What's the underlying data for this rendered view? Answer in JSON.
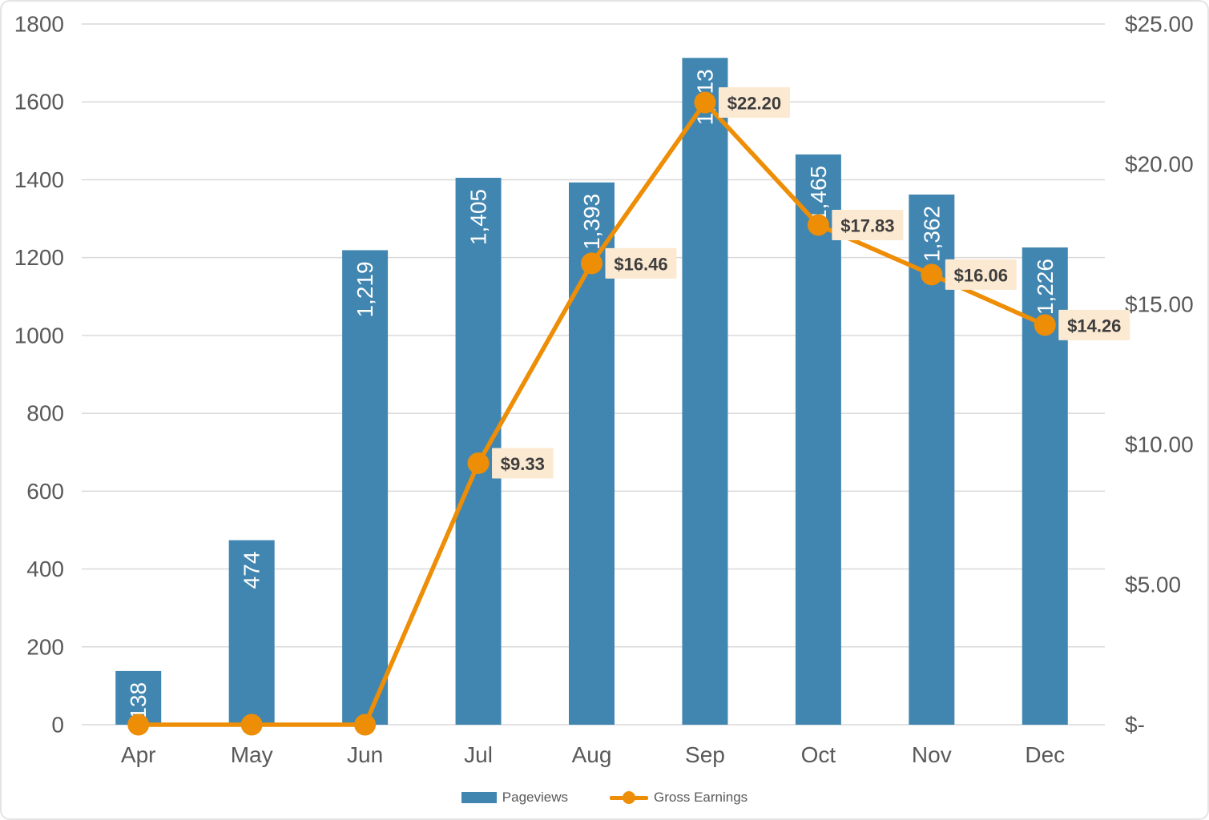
{
  "legend": {
    "pageviews_label": "Pageviews",
    "gross_earnings_label": "Gross Earnings"
  },
  "colors": {
    "bar": "#4186B1",
    "line": "#EE8D06",
    "line_label_bg": "#FCE9D1",
    "line_label_text": "#3E3E3E",
    "axis_text": "#595959",
    "gridline": "#D9D9D9",
    "bar_label_text": "#FFFFFF"
  },
  "chart_data": {
    "type": "bar",
    "subtype": "combo-bar-line-dual-axis",
    "title": "",
    "xlabel": "",
    "ylabel_left": "",
    "ylabel_right": "",
    "grid": true,
    "legend_position": "bottom",
    "categories": [
      "Apr",
      "May",
      "Jun",
      "Jul",
      "Aug",
      "Sep",
      "Oct",
      "Nov",
      "Dec"
    ],
    "series": [
      {
        "name": "Pageviews",
        "type": "bar",
        "axis": "left",
        "color": "#4186B1",
        "values": [
          138,
          474,
          1219,
          1405,
          1393,
          1713,
          1465,
          1362,
          1226
        ],
        "data_labels": [
          "138",
          "474",
          "1,219",
          "1,405",
          "1,393",
          "1,713",
          "1,465",
          "1,362",
          "1,226"
        ]
      },
      {
        "name": "Gross Earnings",
        "type": "line",
        "axis": "right",
        "color": "#EE8D06",
        "values": [
          0,
          0,
          0,
          9.33,
          16.46,
          22.2,
          17.83,
          16.06,
          14.26
        ],
        "data_labels": [
          null,
          null,
          null,
          "$9.33",
          "$16.46",
          "$22.20",
          "$17.83",
          "$16.06",
          "$14.26"
        ],
        "label_bg": "#FCE9D1"
      }
    ],
    "axes": {
      "left": {
        "min": 0,
        "max": 1800,
        "step": 200,
        "tick_labels": [
          "0",
          "200",
          "400",
          "600",
          "800",
          "1000",
          "1200",
          "1400",
          "1600",
          "1800"
        ]
      },
      "right": {
        "min": 0,
        "max": 25,
        "step": 5,
        "tick_labels": [
          "$-",
          "$5.00",
          "$10.00",
          "$15.00",
          "$20.00",
          "$25.00"
        ]
      }
    }
  }
}
